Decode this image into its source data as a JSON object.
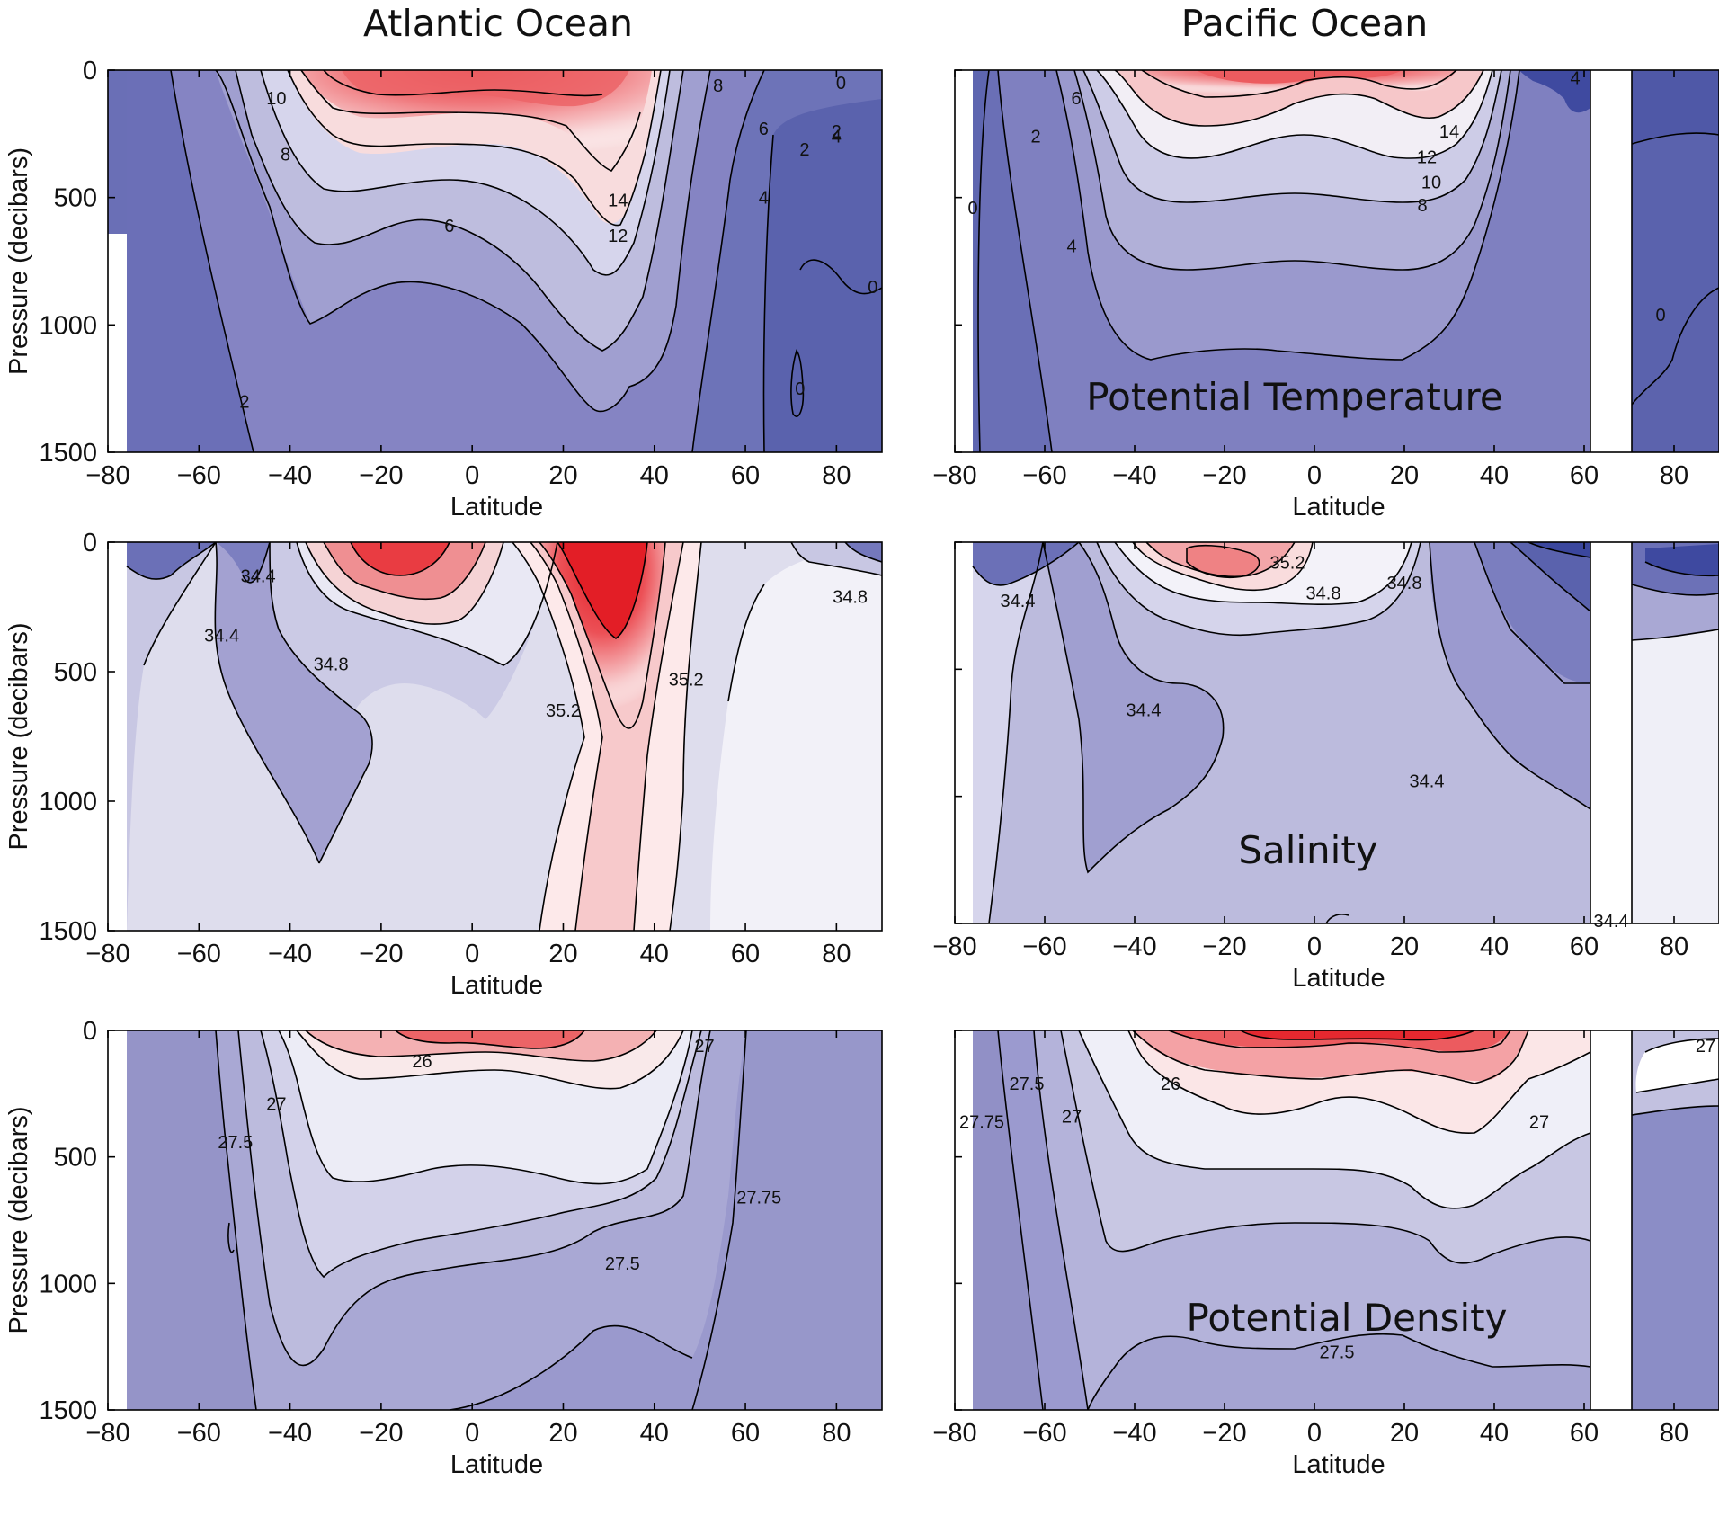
{
  "column_titles": [
    "Atlantic Ocean",
    "Pacific Ocean"
  ],
  "colors": {
    "frame": "#000000",
    "land_gap": "#ffffff",
    "deep_blue": "#5561a8",
    "warm_red": "#e8333a"
  },
  "chart_data": [
    {
      "type": "heatmap",
      "ocean": "Atlantic Ocean",
      "field": "Potential Temperature",
      "panel_label": "",
      "xlabel": "Latitude",
      "ylabel": "Pressure (decibars)",
      "xlim": [
        -80,
        90
      ],
      "ylim": [
        1500,
        0
      ],
      "xticks": [
        "-80",
        "-60",
        "-40",
        "-20",
        "0",
        "20",
        "40",
        "60",
        "80"
      ],
      "yticks": [
        "0",
        "500",
        "1000",
        "1500"
      ],
      "contour_labels": [
        {
          "text": "10",
          "lat": -43,
          "p": 110
        },
        {
          "text": "8",
          "lat": -41,
          "p": 330
        },
        {
          "text": "6",
          "lat": -5,
          "p": 610
        },
        {
          "text": "14",
          "lat": 32,
          "p": 510
        },
        {
          "text": "12",
          "lat": 32,
          "p": 650
        },
        {
          "text": "8",
          "lat": 54,
          "p": 60
        },
        {
          "text": "6",
          "lat": 64,
          "p": 230
        },
        {
          "text": "4",
          "lat": 64,
          "p": 500
        },
        {
          "text": "2",
          "lat": 73,
          "p": 310
        },
        {
          "text": "2",
          "lat": 80,
          "p": 240
        },
        {
          "text": "4",
          "lat": 80,
          "p": 260
        },
        {
          "text": "0",
          "lat": 81,
          "p": 50
        },
        {
          "text": "0",
          "lat": 88,
          "p": 850
        },
        {
          "text": "0",
          "lat": 72,
          "p": 1250
        },
        {
          "text": "2",
          "lat": -50,
          "p": 1300
        }
      ]
    },
    {
      "type": "heatmap",
      "ocean": "Pacific Ocean",
      "field": "Potential Temperature",
      "panel_label": "Potential Temperature",
      "xlabel": "Latitude",
      "ylabel": "",
      "xlim": [
        -80,
        90
      ],
      "ylim": [
        1500,
        0
      ],
      "xticks": [
        "-80",
        "-60",
        "-40",
        "-20",
        "0",
        "20",
        "40",
        "60",
        "80"
      ],
      "yticks": [],
      "land_gap_lat": [
        62,
        71
      ],
      "contour_labels": [
        {
          "text": "6",
          "lat": -53,
          "p": 110
        },
        {
          "text": "2",
          "lat": -62,
          "p": 260
        },
        {
          "text": "0",
          "lat": -76,
          "p": 540
        },
        {
          "text": "4",
          "lat": -54,
          "p": 690
        },
        {
          "text": "14",
          "lat": 30,
          "p": 240
        },
        {
          "text": "12",
          "lat": 25,
          "p": 340
        },
        {
          "text": "10",
          "lat": 26,
          "p": 440
        },
        {
          "text": "8",
          "lat": 24,
          "p": 530
        },
        {
          "text": "4",
          "lat": 58,
          "p": 30
        },
        {
          "text": "0",
          "lat": 77,
          "p": 960
        }
      ]
    },
    {
      "type": "heatmap",
      "ocean": "Atlantic Ocean",
      "field": "Salinity",
      "panel_label": "",
      "xlabel": "Latitude",
      "ylabel": "Pressure (decibars)",
      "xlim": [
        -80,
        90
      ],
      "ylim": [
        1500,
        0
      ],
      "xticks": [
        "-80",
        "-60",
        "-40",
        "-20",
        "0",
        "20",
        "40",
        "60",
        "80"
      ],
      "yticks": [
        "0",
        "500",
        "1000",
        "1500"
      ],
      "contour_labels": [
        {
          "text": "34.4",
          "lat": -47,
          "p": 130
        },
        {
          "text": "34.4",
          "lat": -55,
          "p": 360
        },
        {
          "text": "34.8",
          "lat": -31,
          "p": 470
        },
        {
          "text": "35.2",
          "lat": 20,
          "p": 650
        },
        {
          "text": "35.2",
          "lat": 47,
          "p": 530
        },
        {
          "text": "34.8",
          "lat": 83,
          "p": 210
        }
      ]
    },
    {
      "type": "heatmap",
      "ocean": "Pacific Ocean",
      "field": "Salinity",
      "panel_label": "Salinity",
      "xlabel": "Latitude",
      "ylabel": "",
      "xlim": [
        -80,
        90
      ],
      "ylim": [
        1500,
        0
      ],
      "xticks": [
        "-80",
        "-60",
        "-40",
        "-20",
        "0",
        "20",
        "40",
        "60",
        "80"
      ],
      "yticks": [],
      "land_gap_lat": [
        62,
        71
      ],
      "contour_labels": [
        {
          "text": "35.2",
          "lat": -6,
          "p": 80
        },
        {
          "text": "34.8",
          "lat": 2,
          "p": 200
        },
        {
          "text": "34.8",
          "lat": 20,
          "p": 160
        },
        {
          "text": "34.4",
          "lat": -66,
          "p": 230
        },
        {
          "text": "34.4",
          "lat": -38,
          "p": 660
        },
        {
          "text": "34.4",
          "lat": 25,
          "p": 940
        },
        {
          "text": "34.4",
          "lat": 66,
          "p": 1490
        }
      ]
    },
    {
      "type": "heatmap",
      "ocean": "Atlantic Ocean",
      "field": "Potential Density",
      "panel_label": "",
      "xlabel": "Latitude",
      "ylabel": "Pressure (decibars)",
      "xlim": [
        -80,
        90
      ],
      "ylim": [
        1500,
        0
      ],
      "xticks": [
        "-80",
        "-60",
        "-40",
        "-20",
        "0",
        "20",
        "40",
        "60",
        "80"
      ],
      "yticks": [
        "0",
        "500",
        "1000",
        "1500"
      ],
      "contour_labels": [
        {
          "text": "26",
          "lat": -11,
          "p": 120
        },
        {
          "text": "27",
          "lat": 51,
          "p": 60
        },
        {
          "text": "27",
          "lat": -43,
          "p": 290
        },
        {
          "text": "27.5",
          "lat": -52,
          "p": 440
        },
        {
          "text": "27.75",
          "lat": 63,
          "p": 660
        },
        {
          "text": "27.5",
          "lat": 33,
          "p": 920
        }
      ]
    },
    {
      "type": "heatmap",
      "ocean": "Pacific Ocean",
      "field": "Potential Density",
      "panel_label": "Potential Density",
      "xlabel": "Latitude",
      "ylabel": "",
      "xlim": [
        -80,
        90
      ],
      "ylim": [
        1500,
        0
      ],
      "xticks": [
        "-80",
        "-60",
        "-40",
        "-20",
        "0",
        "20",
        "40",
        "60",
        "80"
      ],
      "yticks": [],
      "land_gap_lat": [
        62,
        71
      ],
      "contour_labels": [
        {
          "text": "27.5",
          "lat": -64,
          "p": 210
        },
        {
          "text": "27.75",
          "lat": -74,
          "p": 360
        },
        {
          "text": "27",
          "lat": -54,
          "p": 340
        },
        {
          "text": "26",
          "lat": -32,
          "p": 210
        },
        {
          "text": "27",
          "lat": 50,
          "p": 360
        },
        {
          "text": "27",
          "lat": 87,
          "p": 60
        },
        {
          "text": "27.5",
          "lat": 5,
          "p": 1270
        }
      ]
    }
  ]
}
